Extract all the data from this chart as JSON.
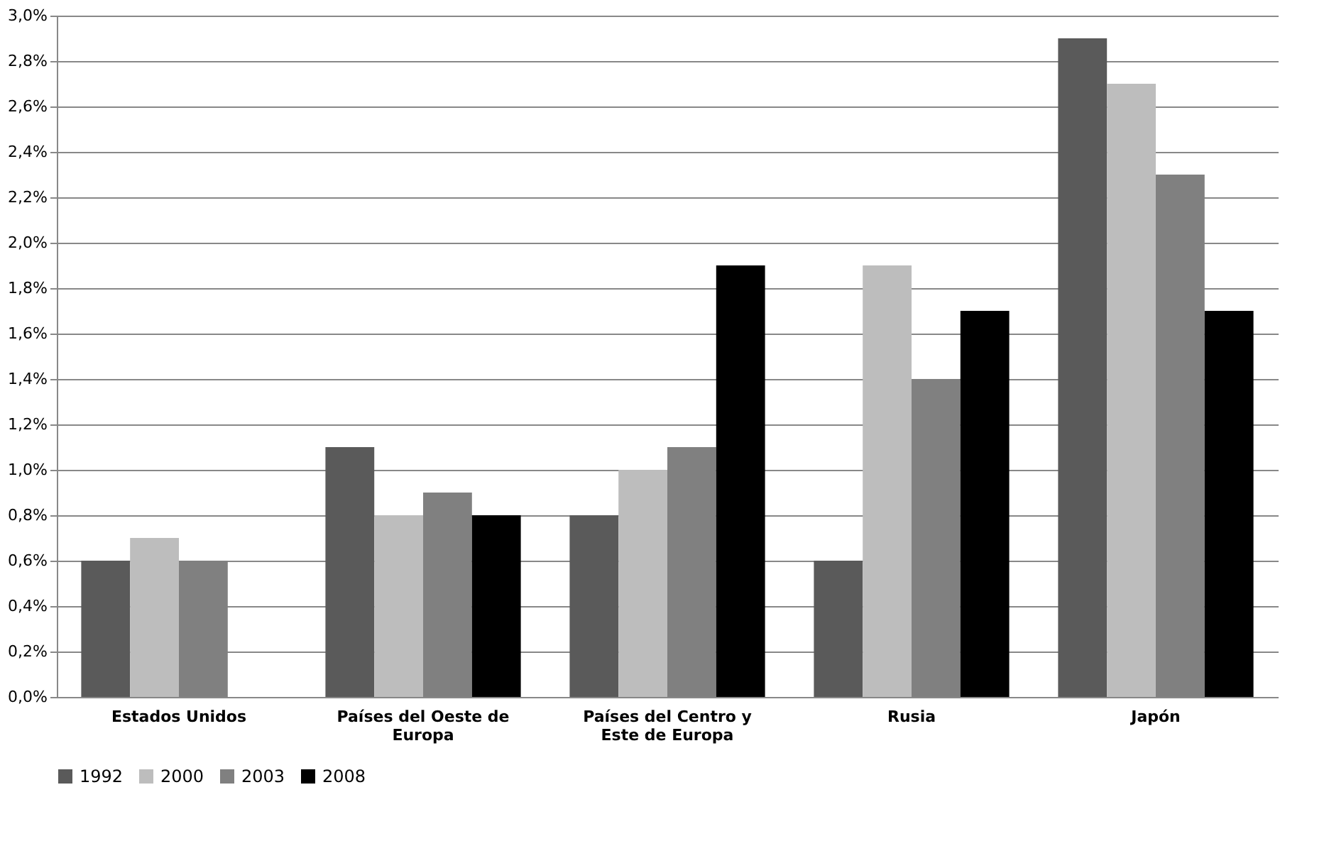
{
  "chart_data": {
    "type": "bar",
    "categories": [
      "Estados Unidos",
      "Países del Oeste de Europa",
      "Países del Centro y Este de Europa",
      "Rusia",
      "Japón"
    ],
    "series": [
      {
        "name": "1992",
        "color": "#5a5a5a",
        "values": [
          0.6,
          1.1,
          0.8,
          0.6,
          2.9
        ]
      },
      {
        "name": "2000",
        "color": "#bdbdbd",
        "values": [
          0.7,
          0.8,
          1.0,
          1.9,
          2.7
        ]
      },
      {
        "name": "2003",
        "color": "#808080",
        "values": [
          0.6,
          0.9,
          1.1,
          1.4,
          2.3
        ]
      },
      {
        "name": "2008",
        "color": "#000000",
        "values": [
          null,
          0.8,
          1.9,
          1.7,
          1.7
        ]
      }
    ],
    "ylim": [
      0,
      3.0
    ],
    "yticks": [
      {
        "value": 0,
        "label": "0,0%"
      },
      {
        "value": 0.2,
        "label": "0,2%"
      },
      {
        "value": 0.4,
        "label": "0,4%"
      },
      {
        "value": 0.6,
        "label": "0,6%"
      },
      {
        "value": 0.8,
        "label": "0,8%"
      },
      {
        "value": 1.0,
        "label": "1,0%"
      },
      {
        "value": 1.2,
        "label": "1,2%"
      },
      {
        "value": 1.4,
        "label": "1,4%"
      },
      {
        "value": 1.6,
        "label": "1,6%"
      },
      {
        "value": 1.8,
        "label": "1,8%"
      },
      {
        "value": 2.0,
        "label": "2,0%"
      },
      {
        "value": 2.2,
        "label": "2,2%"
      },
      {
        "value": 2.4,
        "label": "2,4%"
      },
      {
        "value": 2.6,
        "label": "2,6%"
      },
      {
        "value": 2.8,
        "label": "2,8%"
      },
      {
        "value": 3.0,
        "label": "3,0%"
      }
    ],
    "grid": "y",
    "legend": "bottom"
  }
}
